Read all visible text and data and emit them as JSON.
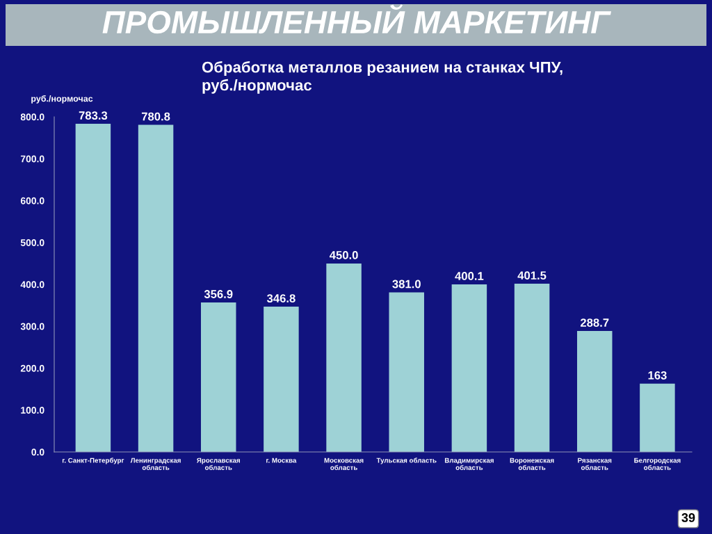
{
  "chart_data": {
    "type": "bar",
    "title": "ПРОМЫШЛЕННЫЙ МАРКЕТИНГ",
    "subtitle": "Обработка металлов резанием на станках ЧПУ,\nруб./нормочас",
    "ylabel": "руб./нормочас",
    "categories": [
      "г. Санкт-Петербург",
      "Ленинградская\nобласть",
      "Ярославская\nобласть",
      "г. Москва",
      "Московская\nобласть",
      "Тульская область",
      "Владимирская\nобласть",
      "Воронежская\nобласть",
      "Рязанская\nобласть",
      "Белгородская\nобласть"
    ],
    "values": [
      783.3,
      780.8,
      356.9,
      346.8,
      450.0,
      381.0,
      400.1,
      401.5,
      288.7,
      163
    ],
    "value_labels": [
      "783.3",
      "780.8",
      "356.9",
      "346.8",
      "450.0",
      "381.0",
      "400.1",
      "401.5",
      "288.7",
      "163"
    ],
    "color": "#9ed2d6",
    "ylim": [
      0,
      800
    ],
    "yticks": [
      {
        "value": 0,
        "label": "0.0"
      },
      {
        "value": 100,
        "label": "100.0"
      },
      {
        "value": 200,
        "label": "200.0"
      },
      {
        "value": 300,
        "label": "300.0"
      },
      {
        "value": 400,
        "label": "400.0"
      },
      {
        "value": 500,
        "label": "500.0"
      },
      {
        "value": 600,
        "label": "600.0"
      },
      {
        "value": 700,
        "label": "700.0"
      },
      {
        "value": 800,
        "label": "800.0"
      }
    ],
    "annotations": [
      "39"
    ]
  }
}
